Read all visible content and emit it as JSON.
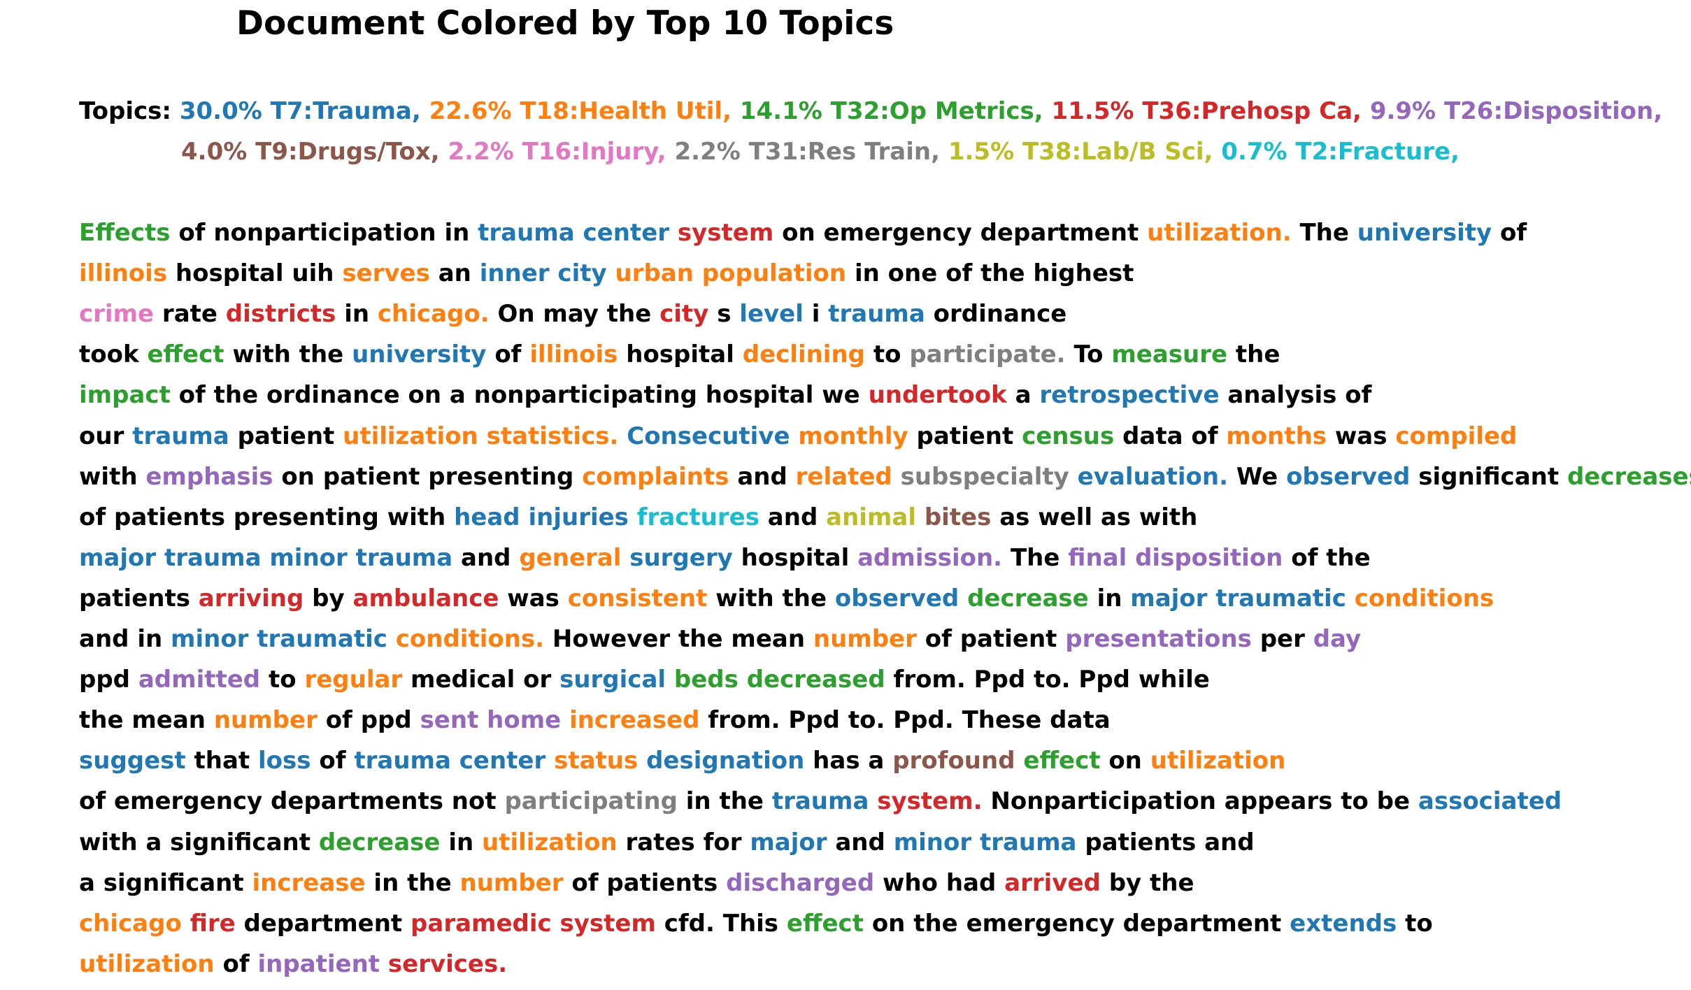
{
  "title": "Document Colored by Top 10 Topics",
  "colors": {
    "k": "#000000",
    "T7": "#1f77b4",
    "T18": "#ff7f0e",
    "T32": "#2ca02c",
    "T36": "#d62728",
    "T26": "#9467bd",
    "T9": "#8c564b",
    "T16": "#e377c2",
    "T31": "#7f7f7f",
    "T38": "#bcbd22",
    "T2": "#17becf"
  },
  "topics_label": "Topics:",
  "topics": [
    {
      "key": "T7",
      "text": "30.0% T7:Trauma,"
    },
    {
      "key": "T18",
      "text": "22.6% T18:Health Util,"
    },
    {
      "key": "T32",
      "text": "14.1% T32:Op Metrics,"
    },
    {
      "key": "T36",
      "text": "11.5% T36:Prehosp Ca,"
    },
    {
      "key": "T26",
      "text": "9.9% T26:Disposition,"
    },
    {
      "key": "T9",
      "text": "4.0% T9:Drugs/Tox,"
    },
    {
      "key": "T16",
      "text": "2.2% T16:Injury,"
    },
    {
      "key": "T31",
      "text": "2.2% T31:Res Train,"
    },
    {
      "key": "T38",
      "text": "1.5% T38:Lab/B Sci,"
    },
    {
      "key": "T2",
      "text": "0.7% T2:Fracture,"
    }
  ],
  "document_lines": [
    [
      [
        "T32",
        "Effects"
      ],
      [
        "k",
        "of nonparticipation in"
      ],
      [
        "T7",
        "trauma center"
      ],
      [
        "T36",
        "system"
      ],
      [
        "k",
        "on emergency department"
      ],
      [
        "T18",
        "utilization."
      ],
      [
        "k",
        "The"
      ],
      [
        "T7",
        "university"
      ],
      [
        "k",
        "of"
      ]
    ],
    [
      [
        "T18",
        "illinois"
      ],
      [
        "k",
        "hospital uih"
      ],
      [
        "T18",
        "serves"
      ],
      [
        "k",
        "an"
      ],
      [
        "T7",
        "inner city"
      ],
      [
        "T18",
        "urban population"
      ],
      [
        "k",
        "in one of the highest"
      ]
    ],
    [
      [
        "T16",
        "crime"
      ],
      [
        "k",
        "rate"
      ],
      [
        "T36",
        "districts"
      ],
      [
        "k",
        "in"
      ],
      [
        "T18",
        "chicago."
      ],
      [
        "k",
        "On may the"
      ],
      [
        "T36",
        "city"
      ],
      [
        "k",
        "s"
      ],
      [
        "T7",
        "level"
      ],
      [
        "k",
        "i"
      ],
      [
        "T7",
        "trauma"
      ],
      [
        "k",
        "ordinance"
      ]
    ],
    [
      [
        "k",
        "took"
      ],
      [
        "T32",
        "effect"
      ],
      [
        "k",
        "with the"
      ],
      [
        "T7",
        "university"
      ],
      [
        "k",
        "of"
      ],
      [
        "T18",
        "illinois"
      ],
      [
        "k",
        "hospital"
      ],
      [
        "T18",
        "declining"
      ],
      [
        "k",
        "to"
      ],
      [
        "T31",
        "participate."
      ],
      [
        "k",
        "To"
      ],
      [
        "T32",
        "measure"
      ],
      [
        "k",
        "the"
      ]
    ],
    [
      [
        "T32",
        "impact"
      ],
      [
        "k",
        "of the ordinance on a nonparticipating hospital we"
      ],
      [
        "T36",
        "undertook"
      ],
      [
        "k",
        "a"
      ],
      [
        "T7",
        "retrospective"
      ],
      [
        "k",
        "analysis of"
      ]
    ],
    [
      [
        "k",
        "our"
      ],
      [
        "T7",
        "trauma"
      ],
      [
        "k",
        "patient"
      ],
      [
        "T18",
        "utilization statistics."
      ],
      [
        "T7",
        "Consecutive"
      ],
      [
        "T18",
        "monthly"
      ],
      [
        "k",
        "patient"
      ],
      [
        "T32",
        "census"
      ],
      [
        "k",
        "data of"
      ],
      [
        "T18",
        "months"
      ],
      [
        "k",
        "was"
      ],
      [
        "T18",
        "compiled"
      ]
    ],
    [
      [
        "k",
        "with"
      ],
      [
        "T26",
        "emphasis"
      ],
      [
        "k",
        "on patient presenting"
      ],
      [
        "T18",
        "complaints"
      ],
      [
        "k",
        "and"
      ],
      [
        "T18",
        "related"
      ],
      [
        "T31",
        "subspecialty"
      ],
      [
        "T7",
        "evaluation."
      ],
      [
        "k",
        "We"
      ],
      [
        "T7",
        "observed"
      ],
      [
        "k",
        "significant"
      ],
      [
        "T32",
        "decreases"
      ]
    ],
    [
      [
        "k",
        "of patients presenting with"
      ],
      [
        "T7",
        "head injuries"
      ],
      [
        "T2",
        "fractures"
      ],
      [
        "k",
        "and"
      ],
      [
        "T38",
        "animal"
      ],
      [
        "T9",
        "bites"
      ],
      [
        "k",
        "as well as with"
      ]
    ],
    [
      [
        "T7",
        "major trauma minor trauma"
      ],
      [
        "k",
        "and"
      ],
      [
        "T18",
        "general"
      ],
      [
        "T7",
        "surgery"
      ],
      [
        "k",
        "hospital"
      ],
      [
        "T26",
        "admission."
      ],
      [
        "k",
        "The"
      ],
      [
        "T26",
        "final disposition"
      ],
      [
        "k",
        "of the"
      ]
    ],
    [
      [
        "k",
        "patients"
      ],
      [
        "T36",
        "arriving"
      ],
      [
        "k",
        "by"
      ],
      [
        "T36",
        "ambulance"
      ],
      [
        "k",
        "was"
      ],
      [
        "T18",
        "consistent"
      ],
      [
        "k",
        "with the"
      ],
      [
        "T7",
        "observed"
      ],
      [
        "T32",
        "decrease"
      ],
      [
        "k",
        "in"
      ],
      [
        "T7",
        "major traumatic"
      ],
      [
        "T18",
        "conditions"
      ]
    ],
    [
      [
        "k",
        "and in"
      ],
      [
        "T7",
        "minor traumatic"
      ],
      [
        "T18",
        "conditions."
      ],
      [
        "k",
        "However the mean"
      ],
      [
        "T18",
        "number"
      ],
      [
        "k",
        "of patient"
      ],
      [
        "T26",
        "presentations"
      ],
      [
        "k",
        "per"
      ],
      [
        "T26",
        "day"
      ]
    ],
    [
      [
        "k",
        "ppd"
      ],
      [
        "T26",
        "admitted"
      ],
      [
        "k",
        "to"
      ],
      [
        "T18",
        "regular"
      ],
      [
        "k",
        "medical or"
      ],
      [
        "T7",
        "surgical"
      ],
      [
        "T32",
        "beds decreased"
      ],
      [
        "k",
        "from. Ppd to. Ppd while"
      ]
    ],
    [
      [
        "k",
        "the mean"
      ],
      [
        "T18",
        "number"
      ],
      [
        "k",
        "of ppd"
      ],
      [
        "T26",
        "sent home"
      ],
      [
        "T18",
        "increased"
      ],
      [
        "k",
        "from. Ppd to. Ppd. These data"
      ]
    ],
    [
      [
        "T7",
        "suggest"
      ],
      [
        "k",
        "that"
      ],
      [
        "T7",
        "loss"
      ],
      [
        "k",
        "of"
      ],
      [
        "T7",
        "trauma center"
      ],
      [
        "T18",
        "status"
      ],
      [
        "T7",
        "designation"
      ],
      [
        "k",
        "has a"
      ],
      [
        "T9",
        "profound"
      ],
      [
        "T32",
        "effect"
      ],
      [
        "k",
        "on"
      ],
      [
        "T18",
        "utilization"
      ]
    ],
    [
      [
        "k",
        "of emergency departments not"
      ],
      [
        "T31",
        "participating"
      ],
      [
        "k",
        "in the"
      ],
      [
        "T7",
        "trauma"
      ],
      [
        "T36",
        "system."
      ],
      [
        "k",
        "Nonparticipation appears to be"
      ],
      [
        "T7",
        "associated"
      ]
    ],
    [
      [
        "k",
        "with a significant"
      ],
      [
        "T32",
        "decrease"
      ],
      [
        "k",
        "in"
      ],
      [
        "T18",
        "utilization"
      ],
      [
        "k",
        "rates for"
      ],
      [
        "T7",
        "major"
      ],
      [
        "k",
        "and"
      ],
      [
        "T7",
        "minor trauma"
      ],
      [
        "k",
        "patients and"
      ]
    ],
    [
      [
        "k",
        "a significant"
      ],
      [
        "T18",
        "increase"
      ],
      [
        "k",
        "in the"
      ],
      [
        "T18",
        "number"
      ],
      [
        "k",
        "of patients"
      ],
      [
        "T26",
        "discharged"
      ],
      [
        "k",
        "who had"
      ],
      [
        "T36",
        "arrived"
      ],
      [
        "k",
        "by the"
      ]
    ],
    [
      [
        "T18",
        "chicago"
      ],
      [
        "T36",
        "fire"
      ],
      [
        "k",
        "department"
      ],
      [
        "T36",
        "paramedic system"
      ],
      [
        "k",
        "cfd. This"
      ],
      [
        "T32",
        "effect"
      ],
      [
        "k",
        "on the emergency department"
      ],
      [
        "T7",
        "extends"
      ],
      [
        "k",
        "to"
      ]
    ],
    [
      [
        "T18",
        "utilization"
      ],
      [
        "k",
        "of"
      ],
      [
        "T26",
        "inpatient"
      ],
      [
        "T36",
        "services."
      ]
    ]
  ]
}
